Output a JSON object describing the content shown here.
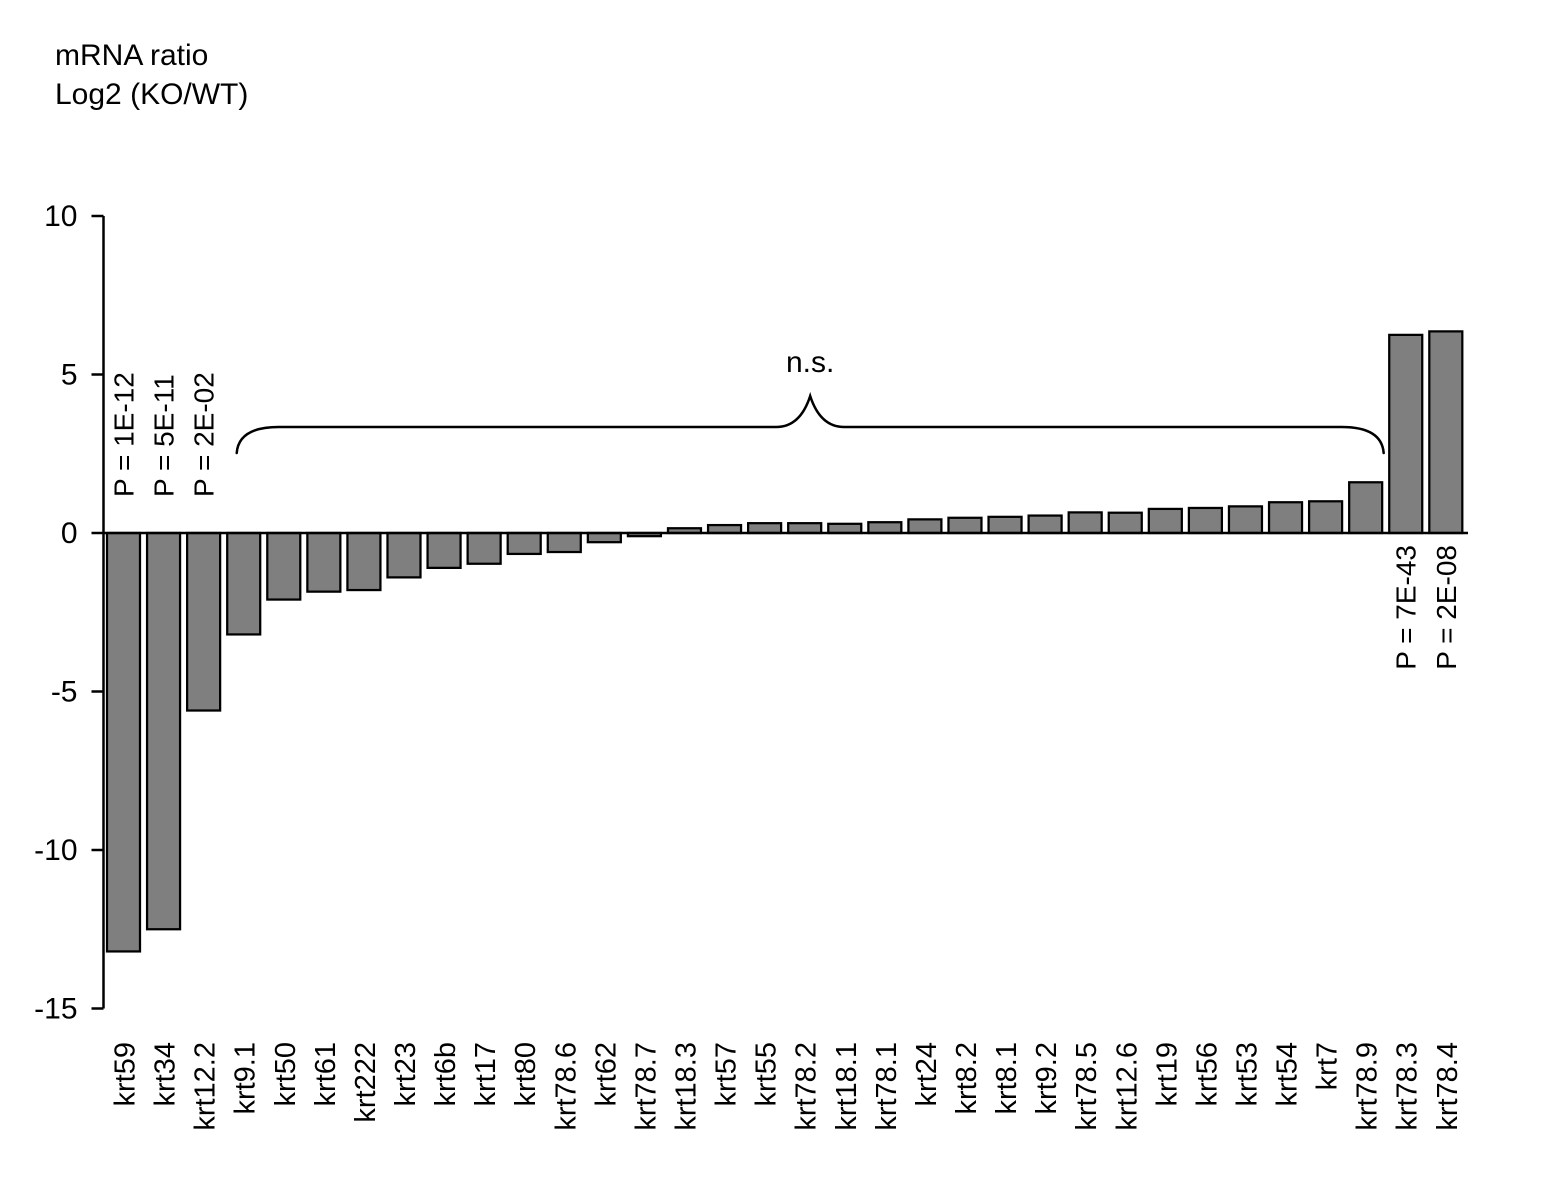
{
  "title": {
    "line1": "mRNA ratio",
    "line2": "Log2 (KO/WT)"
  },
  "chart_data": {
    "type": "bar",
    "title": "mRNA ratio Log2 (KO/WT)",
    "ylabel": "mRNA ratio Log2 (KO/WT)",
    "xlabel": "",
    "ylim": [
      -15,
      10
    ],
    "yticks": [
      10,
      5,
      0,
      -5,
      -10,
      -15
    ],
    "grid": false,
    "legend": "none",
    "bar_color": "#7f7f7f",
    "bar_edge_color": "#000000",
    "categories": [
      "krt59",
      "krt34",
      "krt12.2",
      "krt9.1",
      "krt50",
      "krt61",
      "krt222",
      "krt23",
      "krt6b",
      "krt17",
      "krt80",
      "krt78.6",
      "krt62",
      "krt78.7",
      "krt18.3",
      "krt57",
      "krt55",
      "krt78.2",
      "krt18.1",
      "krt78.1",
      "krt24",
      "krt8.2",
      "krt8.1",
      "krt9.2",
      "krt78.5",
      "krt12.6",
      "krt19",
      "krt56",
      "krt53",
      "krt54",
      "krt7",
      "krt78.9",
      "krt78.3",
      "krt78.4"
    ],
    "values": [
      -13.2,
      -12.5,
      -5.6,
      -3.2,
      -2.1,
      -1.85,
      -1.8,
      -1.4,
      -1.1,
      -0.97,
      -0.66,
      -0.6,
      -0.29,
      -0.1,
      0.15,
      0.25,
      0.31,
      0.31,
      0.29,
      0.34,
      0.43,
      0.48,
      0.51,
      0.55,
      0.65,
      0.64,
      0.76,
      0.79,
      0.84,
      0.97,
      1.0,
      1.6,
      6.25,
      6.36
    ],
    "p_value_annotations": [
      {
        "category": "krt59",
        "text": "P = 1E-12",
        "side": "above"
      },
      {
        "category": "krt34",
        "text": "P = 5E-11",
        "side": "above"
      },
      {
        "category": "krt12.2",
        "text": "P = 2E-02",
        "side": "above"
      },
      {
        "category": "krt78.3",
        "text": "P = 7E-43",
        "side": "below"
      },
      {
        "category": "krt78.4",
        "text": "P = 2E-08",
        "side": "below"
      }
    ],
    "ns_annotation": {
      "label": "n.s.",
      "from_category": "krt9.1",
      "to_category": "krt78.9"
    }
  }
}
